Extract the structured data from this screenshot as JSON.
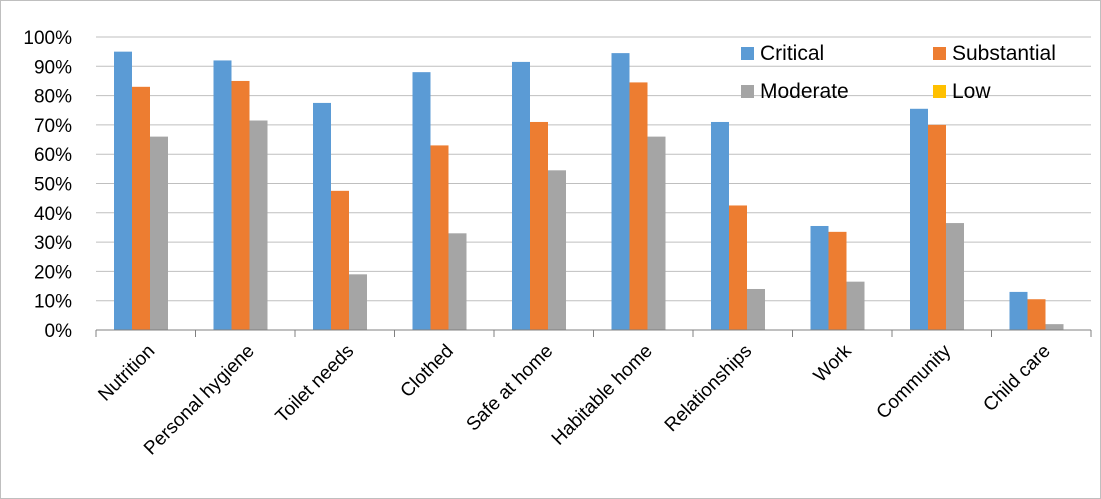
{
  "chart_data": {
    "type": "bar",
    "categories": [
      "Nutrition",
      "Personal hygiene",
      "Toilet needs",
      "Clothed",
      "Safe at home",
      "Habitable home",
      "Relationships",
      "Work",
      "Community",
      "Child care"
    ],
    "series": [
      {
        "name": "Critical",
        "color": "#5B9BD5",
        "values": [
          95,
          92,
          77.5,
          88,
          91.5,
          94.5,
          71,
          35.5,
          75.5,
          13
        ]
      },
      {
        "name": "Substantial",
        "color": "#ED7D31",
        "values": [
          83,
          85,
          47.5,
          63,
          71,
          84.5,
          42.5,
          33.5,
          70,
          10.5
        ]
      },
      {
        "name": "Moderate",
        "color": "#A5A5A5",
        "values": [
          66,
          71.5,
          19,
          33,
          54.5,
          66,
          14,
          16.5,
          36.5,
          2
        ]
      },
      {
        "name": "Low",
        "color": "#FFC000",
        "values": [
          0,
          0,
          0,
          0,
          0,
          0,
          0,
          0,
          0,
          0
        ]
      }
    ],
    "ylim": [
      0,
      100
    ],
    "yticks": [
      "0%",
      "10%",
      "20%",
      "30%",
      "40%",
      "50%",
      "60%",
      "70%",
      "80%",
      "90%",
      "100%"
    ],
    "grid": true,
    "legend_position": "top-right"
  }
}
